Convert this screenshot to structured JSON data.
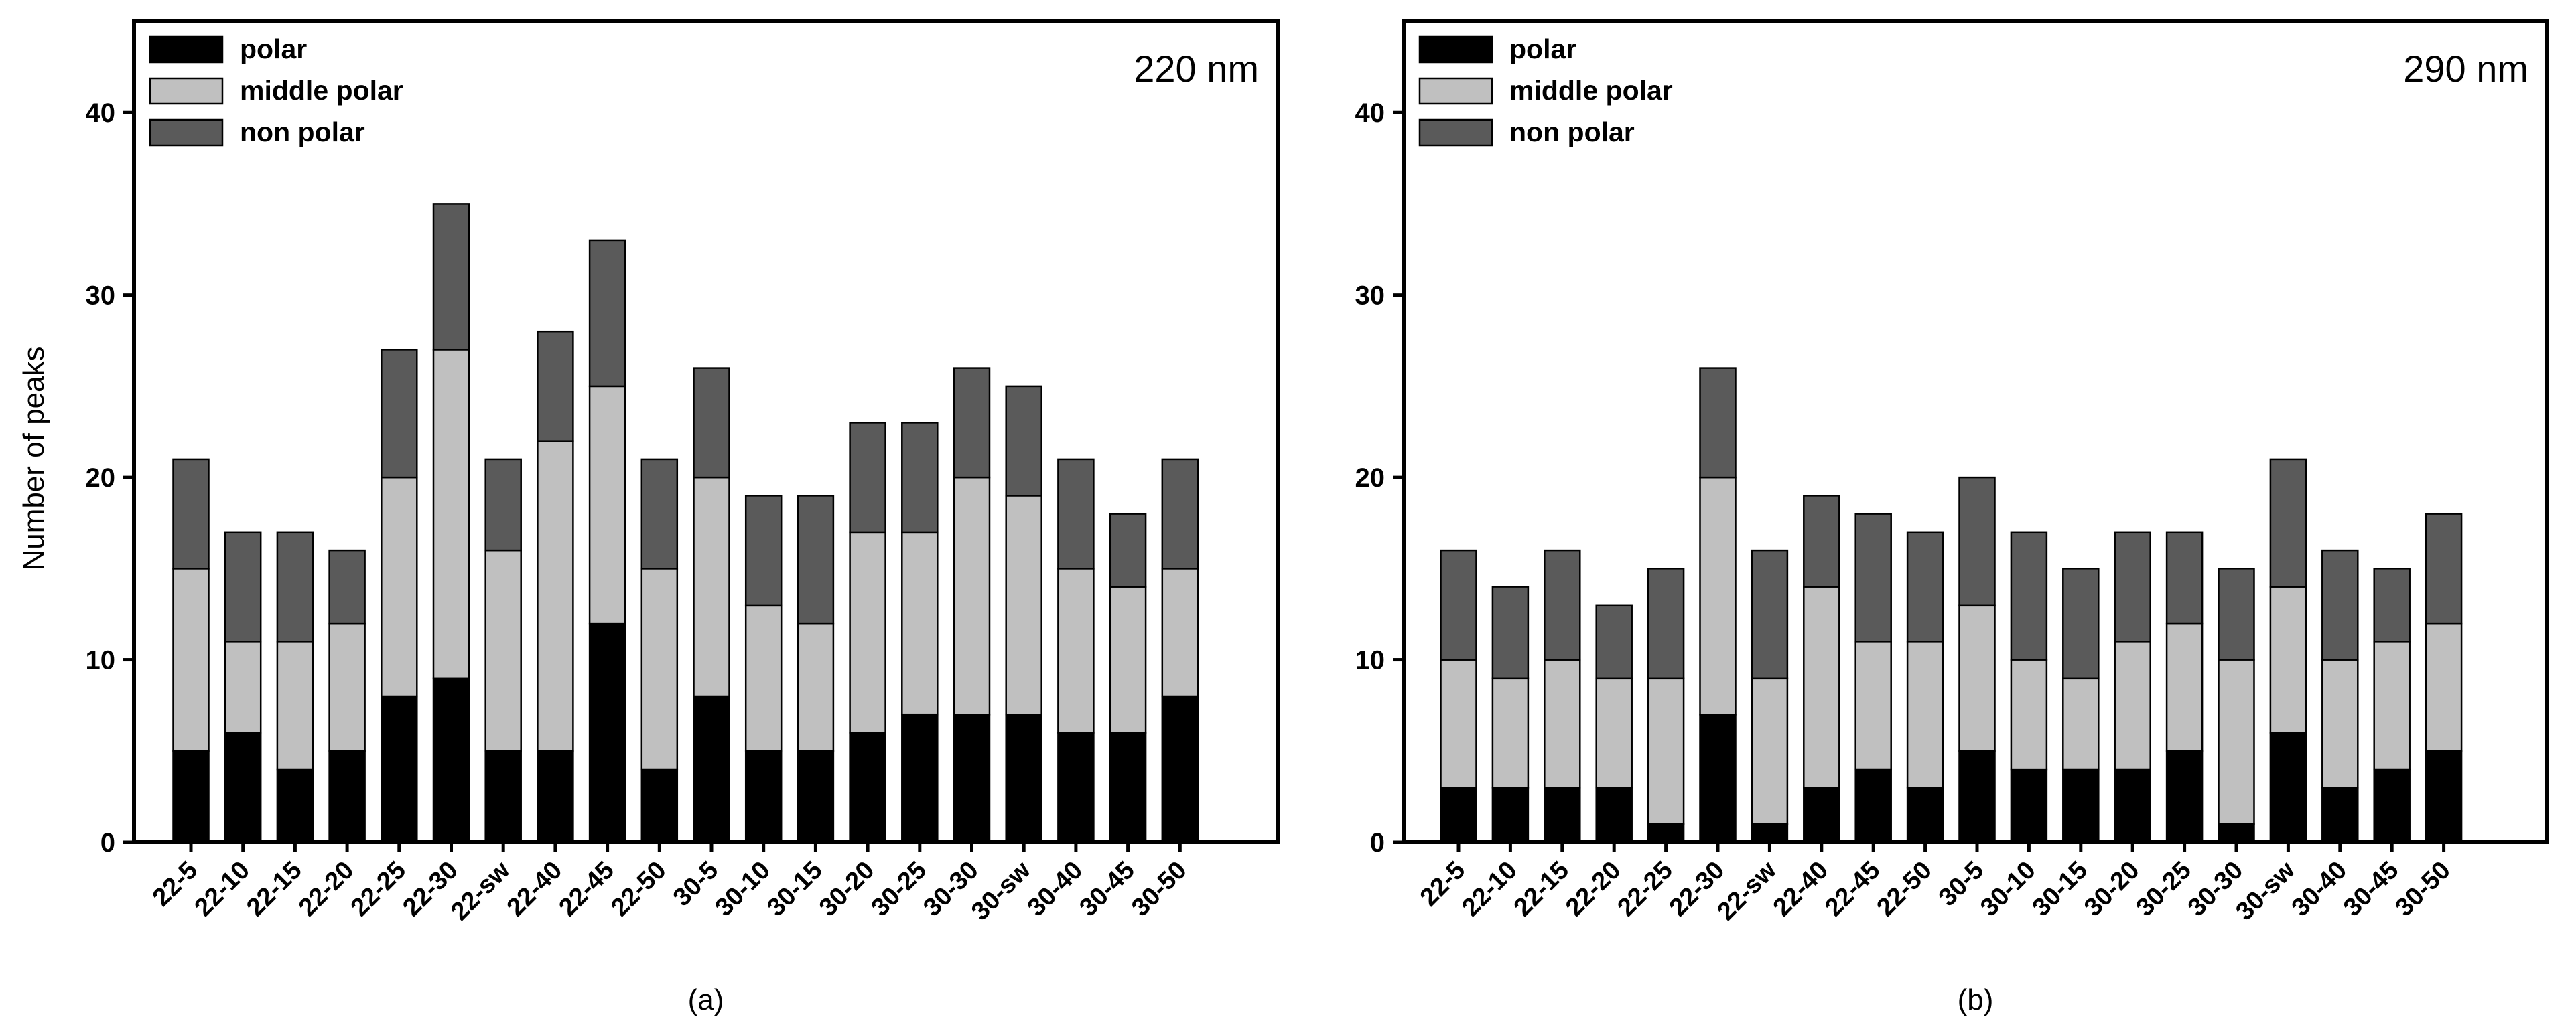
{
  "colors": {
    "polar": "#000000",
    "middle_polar": "#c0c0c0",
    "non_polar": "#5a5a5a"
  },
  "chart_data": [
    {
      "type": "bar",
      "stacked": true,
      "panel_label": "(a)",
      "annotation": "220 nm",
      "xlabel": "",
      "ylabel": "Number of peaks",
      "ylim": [
        0,
        45
      ],
      "yticks": [
        0,
        10,
        20,
        30,
        40
      ],
      "legend_position": "top-left",
      "categories": [
        "22-5",
        "22-10",
        "22-15",
        "22-20",
        "22-25",
        "22-30",
        "22-sw",
        "22-40",
        "22-45",
        "22-50",
        "30-5",
        "30-10",
        "30-15",
        "30-20",
        "30-25",
        "30-30",
        "30-sw",
        "30-40",
        "30-45",
        "30-50"
      ],
      "series": [
        {
          "name": "polar",
          "values": [
            5,
            6,
            4,
            5,
            8,
            9,
            5,
            5,
            12,
            4,
            8,
            5,
            5,
            6,
            7,
            7,
            7,
            6,
            6,
            8
          ]
        },
        {
          "name": "middle polar",
          "values": [
            10,
            5,
            7,
            7,
            12,
            18,
            11,
            17,
            13,
            11,
            12,
            8,
            7,
            11,
            10,
            13,
            12,
            9,
            8,
            7
          ]
        },
        {
          "name": "non polar",
          "values": [
            6,
            6,
            6,
            4,
            7,
            8,
            5,
            6,
            8,
            6,
            6,
            6,
            7,
            6,
            6,
            6,
            6,
            6,
            4,
            6
          ]
        }
      ]
    },
    {
      "type": "bar",
      "stacked": true,
      "panel_label": "(b)",
      "annotation": "290 nm",
      "xlabel": "",
      "ylabel": "",
      "ylim": [
        0,
        45
      ],
      "yticks": [
        0,
        10,
        20,
        30,
        40
      ],
      "legend_position": "top-left",
      "categories": [
        "22-5",
        "22-10",
        "22-15",
        "22-20",
        "22-25",
        "22-30",
        "22-sw",
        "22-40",
        "22-45",
        "22-50",
        "30-5",
        "30-10",
        "30-15",
        "30-20",
        "30-25",
        "30-30",
        "30-sw",
        "30-40",
        "30-45",
        "30-50"
      ],
      "series": [
        {
          "name": "polar",
          "values": [
            3,
            3,
            3,
            3,
            1,
            7,
            1,
            3,
            4,
            3,
            5,
            4,
            4,
            4,
            5,
            1,
            6,
            3,
            4,
            5
          ]
        },
        {
          "name": "middle polar",
          "values": [
            7,
            6,
            7,
            6,
            8,
            13,
            8,
            11,
            7,
            8,
            8,
            6,
            5,
            7,
            7,
            9,
            8,
            7,
            7,
            7
          ]
        },
        {
          "name": "non polar",
          "values": [
            6,
            5,
            6,
            4,
            6,
            6,
            7,
            5,
            7,
            6,
            7,
            7,
            6,
            6,
            5,
            5,
            7,
            6,
            4,
            6
          ]
        }
      ]
    }
  ]
}
